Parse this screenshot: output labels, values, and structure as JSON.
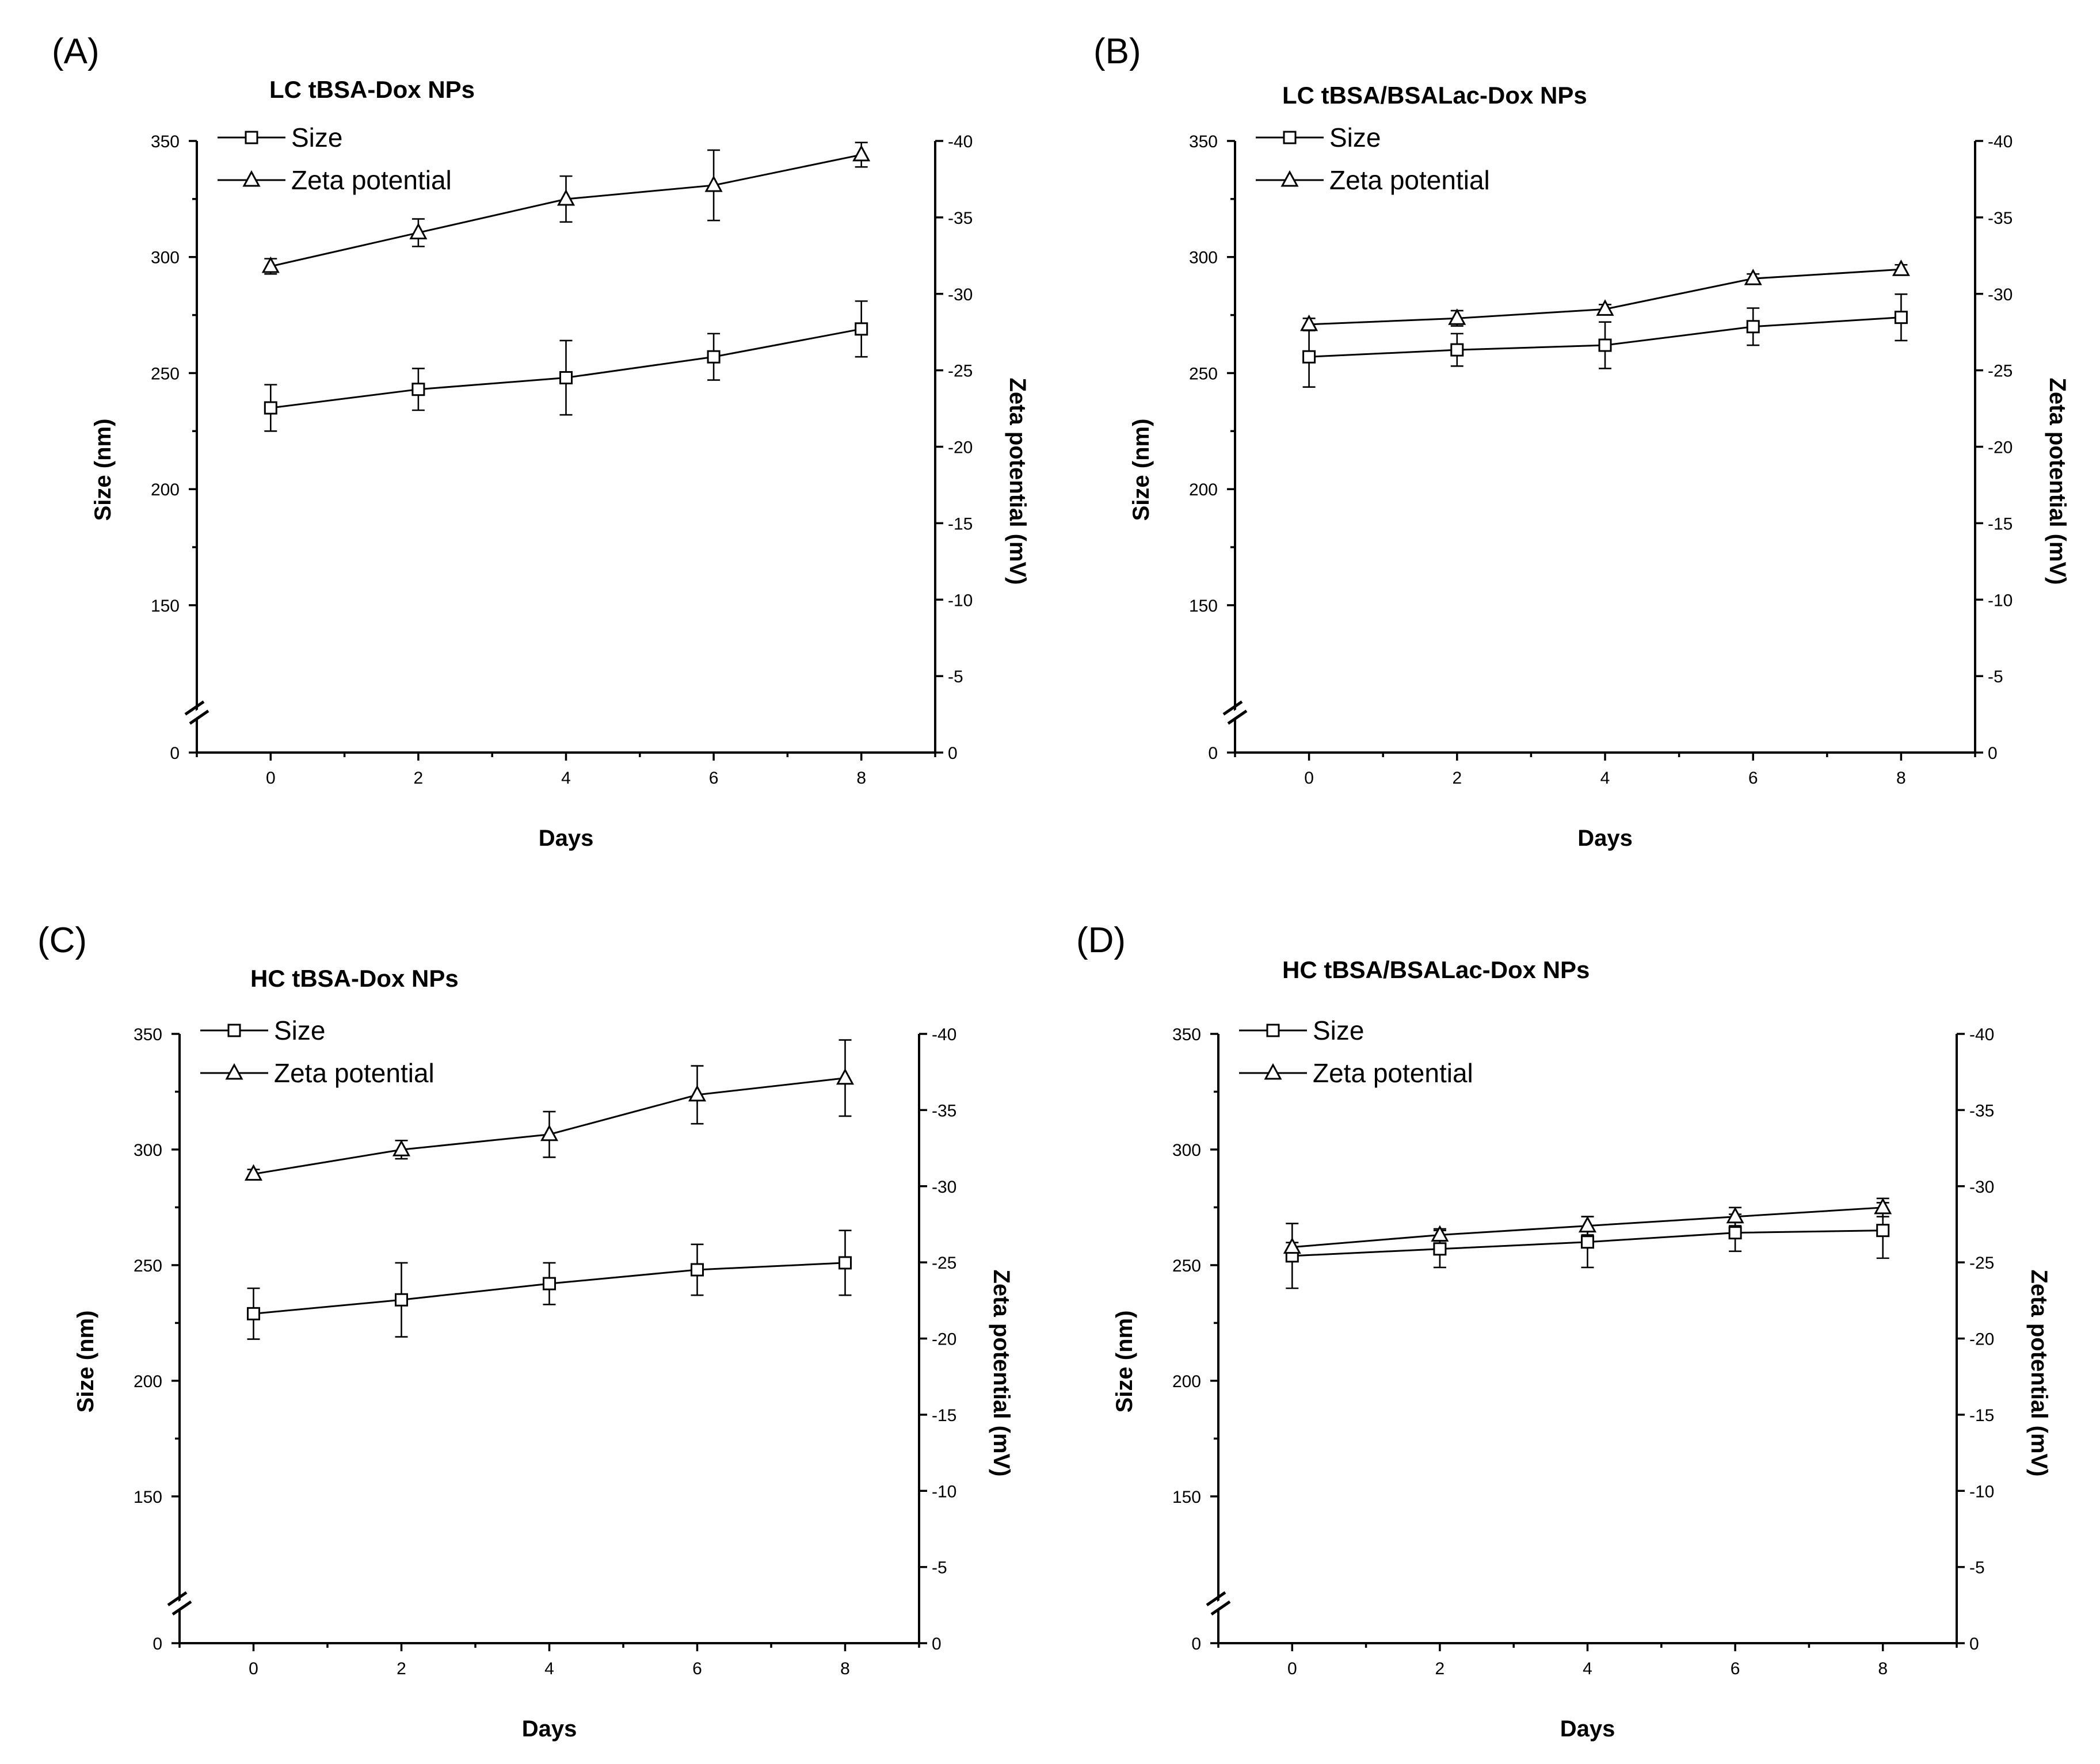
{
  "chart_data": [
    {
      "type": "line",
      "panel_label": "(A)",
      "title": "LC tBSA-Dox NPs",
      "xlabel": "Days",
      "ylabel": "Size (nm)",
      "y2label": "Zeta potential (mV)",
      "x": [
        0,
        2,
        4,
        6,
        8
      ],
      "xlim": [
        -1,
        9
      ],
      "x_ticks": [
        "0",
        "2",
        "4",
        "6",
        "8"
      ],
      "ylim": [
        0,
        350
      ],
      "y_ticks": [
        "0",
        "150",
        "200",
        "250",
        "300",
        "350"
      ],
      "y_axis_break": true,
      "y2lim": [
        0,
        -40
      ],
      "y2_ticks": [
        "0",
        "-5",
        "-10",
        "-15",
        "-20",
        "-25",
        "-30",
        "-35",
        "-40"
      ],
      "legend": {
        "position": "top-left",
        "entries": [
          "Size",
          "Zeta potential"
        ]
      },
      "series": [
        {
          "name": "Size",
          "marker": "square",
          "axis": "left",
          "values": [
            235,
            243,
            248,
            257,
            269
          ],
          "errors": [
            10,
            9,
            16,
            10,
            12
          ]
        },
        {
          "name": "Zeta potential",
          "marker": "triangle",
          "axis": "right",
          "values": [
            -31.8,
            -34.0,
            -36.2,
            -37.1,
            -39.1
          ],
          "errors": [
            0.5,
            0.9,
            1.5,
            2.3,
            0.8
          ]
        }
      ]
    },
    {
      "type": "line",
      "panel_label": "(B)",
      "title": "LC tBSA/BSALac-Dox NPs",
      "xlabel": "Days",
      "ylabel": "Size (nm)",
      "y2label": "Zeta potential (mV)",
      "x": [
        0,
        2,
        4,
        6,
        8
      ],
      "xlim": [
        -1,
        9
      ],
      "x_ticks": [
        "0",
        "2",
        "4",
        "6",
        "8"
      ],
      "ylim": [
        0,
        350
      ],
      "y_ticks": [
        "0",
        "150",
        "200",
        "250",
        "300",
        "350"
      ],
      "y_axis_break": true,
      "y2lim": [
        0,
        -40
      ],
      "y2_ticks": [
        "0",
        "-5",
        "-10",
        "-15",
        "-20",
        "-25",
        "-30",
        "-35",
        "-40"
      ],
      "legend": {
        "position": "top-left",
        "entries": [
          "Size",
          "Zeta potential"
        ]
      },
      "series": [
        {
          "name": "Size",
          "marker": "square",
          "axis": "left",
          "values": [
            257,
            260,
            262,
            270,
            274
          ],
          "errors": [
            13,
            7,
            10,
            8,
            10
          ]
        },
        {
          "name": "Zeta potential",
          "marker": "triangle",
          "axis": "right",
          "values": [
            -28.0,
            -28.4,
            -29.0,
            -31.0,
            -31.6
          ],
          "errors": [
            0.4,
            0.5,
            0.3,
            0.3,
            0.3
          ]
        }
      ]
    },
    {
      "type": "line",
      "panel_label": "(C)",
      "title": "HC tBSA-Dox NPs",
      "xlabel": "Days",
      "ylabel": "Size (nm)",
      "y2label": "Zeta potential (mV)",
      "x": [
        0,
        2,
        4,
        6,
        8
      ],
      "xlim": [
        -1,
        9
      ],
      "x_ticks": [
        "0",
        "2",
        "4",
        "6",
        "8"
      ],
      "ylim": [
        0,
        350
      ],
      "y_ticks": [
        "0",
        "150",
        "200",
        "250",
        "300",
        "350"
      ],
      "y_axis_break": true,
      "y2lim": [
        0,
        -40
      ],
      "y2_ticks": [
        "0",
        "-5",
        "-10",
        "-15",
        "-20",
        "-25",
        "-30",
        "-35",
        "-40"
      ],
      "legend": {
        "position": "top-left",
        "entries": [
          "Size",
          "Zeta potential"
        ]
      },
      "series": [
        {
          "name": "Size",
          "marker": "square",
          "axis": "left",
          "values": [
            229,
            235,
            242,
            248,
            251
          ],
          "errors": [
            11,
            16,
            9,
            11,
            14
          ]
        },
        {
          "name": "Zeta potential",
          "marker": "triangle",
          "axis": "right",
          "values": [
            -30.8,
            -32.4,
            -33.4,
            -36.0,
            -37.1
          ],
          "errors": [
            0.3,
            0.6,
            1.5,
            1.9,
            2.5
          ]
        }
      ]
    },
    {
      "type": "line",
      "panel_label": "(D)",
      "title": "HC tBSA/BSALac-Dox NPs",
      "xlabel": "Days",
      "ylabel": "Size (nm)",
      "y2label": "Zeta potential (mV)",
      "x": [
        0,
        2,
        4,
        6,
        8
      ],
      "xlim": [
        -1,
        9
      ],
      "x_ticks": [
        "0",
        "2",
        "4",
        "6",
        "8"
      ],
      "ylim": [
        0,
        350
      ],
      "y_ticks": [
        "0",
        "150",
        "200",
        "250",
        "300",
        "350"
      ],
      "y_axis_break": true,
      "y2lim": [
        0,
        -40
      ],
      "y2_ticks": [
        "0",
        "-5",
        "-10",
        "-15",
        "-20",
        "-25",
        "-30",
        "-35",
        "-40"
      ],
      "legend": {
        "position": "top-left",
        "entries": [
          "Size",
          "Zeta potential"
        ]
      },
      "series": [
        {
          "name": "Size",
          "marker": "square",
          "axis": "left",
          "values": [
            254,
            257,
            260,
            264,
            265
          ],
          "errors": [
            14,
            8,
            11,
            8,
            12
          ]
        },
        {
          "name": "Zeta potential",
          "marker": "triangle",
          "axis": "right",
          "values": [
            -26.0,
            -26.8,
            -27.4,
            -28.0,
            -28.6
          ],
          "errors": [
            0.3,
            0.4,
            0.6,
            0.6,
            0.6
          ]
        }
      ]
    }
  ]
}
